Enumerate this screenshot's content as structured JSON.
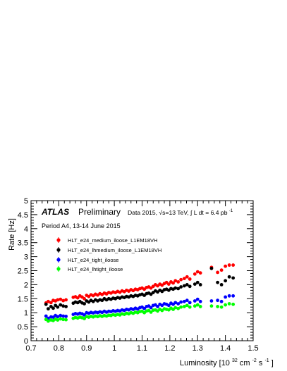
{
  "chart_data": {
    "type": "scatter",
    "title": "",
    "xlabel": "Luminosity [10",
    "xlabel_exp1": "32",
    "xlabel_mid": " cm",
    "xlabel_exp2": "-2",
    "xlabel_s": "s",
    "xlabel_exp3": "-1",
    "xlabel_end": "]",
    "ylabel": "Rate [Hz]",
    "xlim": [
      0.7,
      1.5
    ],
    "ylim": [
      0,
      5
    ],
    "grid": false,
    "legend_placement": "top-left",
    "x_ticks": [
      "0.7",
      "0.8",
      "0.9",
      "1",
      "1.1",
      "1.2",
      "1.3",
      "1.4",
      "1.5"
    ],
    "y_ticks": [
      "0",
      "0.5",
      "1",
      "1.5",
      "2",
      "2.5",
      "3",
      "3.5",
      "4",
      "4.5",
      "5"
    ],
    "annotations": {
      "atlas": "ATLAS",
      "preliminary": "Preliminary",
      "data_label": "Data 2015, √s=13 TeV, ∫ L dt = 6.4 pb",
      "data_label_exp": "-1",
      "period": "Period A4, 13-14 June 2015"
    },
    "series": [
      {
        "name": "HLT_e24_medium_iloose_L1EM18VH",
        "color": "#ff0000",
        "points": [
          [
            0.754,
            1.35
          ],
          [
            0.762,
            1.4
          ],
          [
            0.772,
            1.36
          ],
          [
            0.78,
            1.44
          ],
          [
            0.788,
            1.42
          ],
          [
            0.796,
            1.46
          ],
          [
            0.806,
            1.48
          ],
          [
            0.816,
            1.43
          ],
          [
            0.826,
            1.46
          ],
          [
            0.852,
            1.55
          ],
          [
            0.86,
            1.57
          ],
          [
            0.868,
            1.53
          ],
          [
            0.876,
            1.6
          ],
          [
            0.884,
            1.56
          ],
          [
            0.892,
            1.5
          ],
          [
            0.9,
            1.62
          ],
          [
            0.908,
            1.58
          ],
          [
            0.916,
            1.64
          ],
          [
            0.924,
            1.61
          ],
          [
            0.932,
            1.66
          ],
          [
            0.94,
            1.63
          ],
          [
            0.948,
            1.68
          ],
          [
            0.956,
            1.65
          ],
          [
            0.964,
            1.7
          ],
          [
            0.972,
            1.67
          ],
          [
            0.98,
            1.72
          ],
          [
            0.988,
            1.7
          ],
          [
            0.996,
            1.74
          ],
          [
            1.004,
            1.72
          ],
          [
            1.012,
            1.76
          ],
          [
            1.02,
            1.73
          ],
          [
            1.028,
            1.78
          ],
          [
            1.036,
            1.75
          ],
          [
            1.044,
            1.8
          ],
          [
            1.052,
            1.77
          ],
          [
            1.06,
            1.82
          ],
          [
            1.068,
            1.79
          ],
          [
            1.076,
            1.84
          ],
          [
            1.084,
            1.82
          ],
          [
            1.092,
            1.86
          ],
          [
            1.1,
            1.88
          ],
          [
            1.108,
            1.84
          ],
          [
            1.116,
            1.9
          ],
          [
            1.124,
            1.92
          ],
          [
            1.132,
            1.88
          ],
          [
            1.14,
            1.94
          ],
          [
            1.148,
            2.0
          ],
          [
            1.156,
            1.96
          ],
          [
            1.164,
            2.02
          ],
          [
            1.172,
            1.98
          ],
          [
            1.18,
            2.04
          ],
          [
            1.188,
            2.08
          ],
          [
            1.196,
            2.02
          ],
          [
            1.204,
            2.1
          ],
          [
            1.212,
            2.06
          ],
          [
            1.22,
            2.14
          ],
          [
            1.23,
            2.1
          ],
          [
            1.24,
            2.18
          ],
          [
            1.252,
            2.22
          ],
          [
            1.262,
            2.28
          ],
          [
            1.272,
            2.2
          ],
          [
            1.29,
            2.38
          ],
          [
            1.3,
            2.46
          ],
          [
            1.31,
            2.42
          ],
          [
            1.35,
            2.62
          ],
          [
            1.372,
            2.44
          ],
          [
            1.386,
            2.52
          ],
          [
            1.4,
            2.66
          ],
          [
            1.414,
            2.7
          ],
          [
            1.428,
            2.7
          ]
        ]
      },
      {
        "name": "HLT_e24_lhmedium_iloose_L1EM18VH",
        "color": "#000000",
        "points": [
          [
            0.754,
            1.3
          ],
          [
            0.762,
            1.14
          ],
          [
            0.772,
            1.22
          ],
          [
            0.78,
            1.16
          ],
          [
            0.788,
            1.26
          ],
          [
            0.796,
            1.2
          ],
          [
            0.806,
            1.28
          ],
          [
            0.816,
            1.24
          ],
          [
            0.826,
            1.22
          ],
          [
            0.852,
            1.34
          ],
          [
            0.86,
            1.38
          ],
          [
            0.868,
            1.36
          ],
          [
            0.876,
            1.4
          ],
          [
            0.884,
            1.35
          ],
          [
            0.892,
            1.32
          ],
          [
            0.9,
            1.42
          ],
          [
            0.908,
            1.38
          ],
          [
            0.916,
            1.44
          ],
          [
            0.924,
            1.4
          ],
          [
            0.932,
            1.46
          ],
          [
            0.94,
            1.42
          ],
          [
            0.948,
            1.46
          ],
          [
            0.956,
            1.44
          ],
          [
            0.964,
            1.5
          ],
          [
            0.972,
            1.46
          ],
          [
            0.98,
            1.5
          ],
          [
            0.988,
            1.48
          ],
          [
            0.996,
            1.52
          ],
          [
            1.004,
            1.5
          ],
          [
            1.012,
            1.54
          ],
          [
            1.02,
            1.52
          ],
          [
            1.028,
            1.56
          ],
          [
            1.036,
            1.54
          ],
          [
            1.044,
            1.58
          ],
          [
            1.052,
            1.56
          ],
          [
            1.06,
            1.6
          ],
          [
            1.068,
            1.58
          ],
          [
            1.076,
            1.62
          ],
          [
            1.084,
            1.6
          ],
          [
            1.092,
            1.64
          ],
          [
            1.1,
            1.66
          ],
          [
            1.108,
            1.62
          ],
          [
            1.116,
            1.68
          ],
          [
            1.124,
            1.7
          ],
          [
            1.132,
            1.66
          ],
          [
            1.14,
            1.72
          ],
          [
            1.148,
            1.78
          ],
          [
            1.156,
            1.74
          ],
          [
            1.164,
            1.8
          ],
          [
            1.172,
            1.76
          ],
          [
            1.18,
            1.82
          ],
          [
            1.188,
            1.84
          ],
          [
            1.196,
            1.8
          ],
          [
            1.204,
            1.86
          ],
          [
            1.212,
            1.84
          ],
          [
            1.22,
            1.88
          ],
          [
            1.23,
            1.86
          ],
          [
            1.24,
            1.92
          ],
          [
            1.252,
            1.96
          ],
          [
            1.262,
            2.0
          ],
          [
            1.272,
            1.94
          ],
          [
            1.29,
            2.02
          ],
          [
            1.3,
            2.08
          ],
          [
            1.31,
            2.0
          ],
          [
            1.35,
            2.58
          ],
          [
            1.372,
            2.08
          ],
          [
            1.386,
            2.0
          ],
          [
            1.4,
            2.14
          ],
          [
            1.414,
            2.28
          ],
          [
            1.428,
            2.24
          ]
        ]
      },
      {
        "name": "HLT_e24_tight_iloose",
        "color": "#0000ff",
        "points": [
          [
            0.754,
            0.88
          ],
          [
            0.762,
            0.8
          ],
          [
            0.772,
            0.85
          ],
          [
            0.78,
            0.84
          ],
          [
            0.788,
            0.9
          ],
          [
            0.796,
            0.86
          ],
          [
            0.806,
            0.9
          ],
          [
            0.816,
            0.88
          ],
          [
            0.826,
            0.87
          ],
          [
            0.852,
            0.94
          ],
          [
            0.86,
            0.97
          ],
          [
            0.868,
            0.95
          ],
          [
            0.876,
            0.98
          ],
          [
            0.884,
            0.96
          ],
          [
            0.892,
            0.92
          ],
          [
            0.9,
            1.0
          ],
          [
            0.908,
            0.98
          ],
          [
            0.916,
            1.01
          ],
          [
            0.924,
            0.99
          ],
          [
            0.932,
            1.02
          ],
          [
            0.94,
            1.0
          ],
          [
            0.948,
            1.03
          ],
          [
            0.956,
            1.01
          ],
          [
            0.964,
            1.05
          ],
          [
            0.972,
            1.02
          ],
          [
            0.98,
            1.05
          ],
          [
            0.988,
            1.04
          ],
          [
            0.996,
            1.07
          ],
          [
            1.004,
            1.05
          ],
          [
            1.012,
            1.08
          ],
          [
            1.02,
            1.06
          ],
          [
            1.028,
            1.1
          ],
          [
            1.036,
            1.08
          ],
          [
            1.044,
            1.12
          ],
          [
            1.052,
            1.1
          ],
          [
            1.06,
            1.14
          ],
          [
            1.068,
            1.12
          ],
          [
            1.076,
            1.16
          ],
          [
            1.084,
            1.13
          ],
          [
            1.092,
            1.18
          ],
          [
            1.1,
            1.2
          ],
          [
            1.108,
            1.15
          ],
          [
            1.116,
            1.22
          ],
          [
            1.124,
            1.24
          ],
          [
            1.132,
            1.18
          ],
          [
            1.14,
            1.26
          ],
          [
            1.148,
            1.28
          ],
          [
            1.156,
            1.22
          ],
          [
            1.164,
            1.3
          ],
          [
            1.172,
            1.26
          ],
          [
            1.18,
            1.32
          ],
          [
            1.188,
            1.3
          ],
          [
            1.196,
            1.26
          ],
          [
            1.204,
            1.34
          ],
          [
            1.212,
            1.3
          ],
          [
            1.22,
            1.36
          ],
          [
            1.23,
            1.32
          ],
          [
            1.24,
            1.38
          ],
          [
            1.252,
            1.4
          ],
          [
            1.262,
            1.44
          ],
          [
            1.272,
            1.36
          ],
          [
            1.29,
            1.42
          ],
          [
            1.3,
            1.48
          ],
          [
            1.31,
            1.4
          ],
          [
            1.35,
            1.42
          ],
          [
            1.372,
            1.44
          ],
          [
            1.386,
            1.4
          ],
          [
            1.4,
            1.56
          ],
          [
            1.414,
            1.6
          ],
          [
            1.428,
            1.6
          ]
        ]
      },
      {
        "name": "HLT_e24_lhtight_iloose",
        "color": "#00ff00",
        "points": [
          [
            0.754,
            0.76
          ],
          [
            0.762,
            0.7
          ],
          [
            0.772,
            0.74
          ],
          [
            0.78,
            0.72
          ],
          [
            0.788,
            0.77
          ],
          [
            0.796,
            0.74
          ],
          [
            0.806,
            0.78
          ],
          [
            0.816,
            0.76
          ],
          [
            0.826,
            0.75
          ],
          [
            0.852,
            0.8
          ],
          [
            0.86,
            0.83
          ],
          [
            0.868,
            0.81
          ],
          [
            0.876,
            0.84
          ],
          [
            0.884,
            0.82
          ],
          [
            0.892,
            0.79
          ],
          [
            0.9,
            0.86
          ],
          [
            0.908,
            0.84
          ],
          [
            0.916,
            0.87
          ],
          [
            0.924,
            0.85
          ],
          [
            0.932,
            0.88
          ],
          [
            0.94,
            0.86
          ],
          [
            0.948,
            0.89
          ],
          [
            0.956,
            0.87
          ],
          [
            0.964,
            0.9
          ],
          [
            0.972,
            0.88
          ],
          [
            0.98,
            0.91
          ],
          [
            0.988,
            0.9
          ],
          [
            0.996,
            0.93
          ],
          [
            1.004,
            0.91
          ],
          [
            1.012,
            0.94
          ],
          [
            1.02,
            0.92
          ],
          [
            1.028,
            0.96
          ],
          [
            1.036,
            0.94
          ],
          [
            1.044,
            0.98
          ],
          [
            1.052,
            0.96
          ],
          [
            1.06,
            1.0
          ],
          [
            1.068,
            0.98
          ],
          [
            1.076,
            1.02
          ],
          [
            1.084,
            1.0
          ],
          [
            1.092,
            1.04
          ],
          [
            1.1,
            1.05
          ],
          [
            1.108,
            1.0
          ],
          [
            1.116,
            1.06
          ],
          [
            1.124,
            1.08
          ],
          [
            1.132,
            1.02
          ],
          [
            1.14,
            1.09
          ],
          [
            1.148,
            1.1
          ],
          [
            1.156,
            1.06
          ],
          [
            1.164,
            1.12
          ],
          [
            1.172,
            1.08
          ],
          [
            1.18,
            1.14
          ],
          [
            1.188,
            1.12
          ],
          [
            1.196,
            1.1
          ],
          [
            1.204,
            1.16
          ],
          [
            1.212,
            1.12
          ],
          [
            1.22,
            1.18
          ],
          [
            1.23,
            1.15
          ],
          [
            1.24,
            1.2
          ],
          [
            1.252,
            1.22
          ],
          [
            1.262,
            1.26
          ],
          [
            1.272,
            1.2
          ],
          [
            1.29,
            1.24
          ],
          [
            1.3,
            1.28
          ],
          [
            1.31,
            1.22
          ],
          [
            1.35,
            1.24
          ],
          [
            1.372,
            1.22
          ],
          [
            1.386,
            1.2
          ],
          [
            1.4,
            1.28
          ],
          [
            1.414,
            1.32
          ],
          [
            1.428,
            1.3
          ]
        ]
      }
    ]
  }
}
